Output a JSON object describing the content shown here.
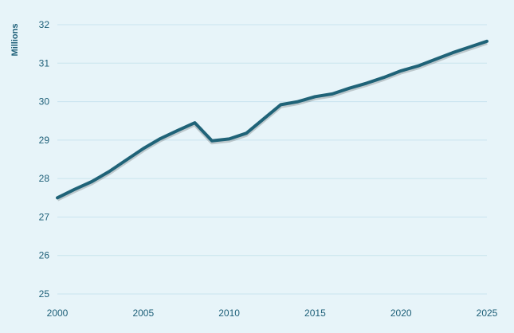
{
  "chart_data": {
    "type": "line",
    "title": "",
    "xlabel": "",
    "ylabel": "Millions",
    "xlim": [
      2000,
      2025
    ],
    "ylim": [
      25,
      32
    ],
    "x_ticks": [
      "2000",
      "2005",
      "2010",
      "2015",
      "2020",
      "2025"
    ],
    "y_ticks": [
      "25",
      "26",
      "27",
      "28",
      "29",
      "30",
      "31",
      "32"
    ],
    "grid": true,
    "legend": "none",
    "x": [
      2000,
      2001,
      2002,
      2003,
      2004,
      2005,
      2006,
      2007,
      2008,
      2009,
      2010,
      2011,
      2012,
      2013,
      2014,
      2015,
      2016,
      2017,
      2018,
      2019,
      2020,
      2021,
      2022,
      2023,
      2024,
      2025
    ],
    "series": [
      {
        "values": [
          27.5,
          27.72,
          27.92,
          28.18,
          28.48,
          28.78,
          29.04,
          29.25,
          29.45,
          28.98,
          29.03,
          29.18,
          29.55,
          29.92,
          30.0,
          30.13,
          30.2,
          30.35,
          30.48,
          30.63,
          30.8,
          30.93,
          31.1,
          31.27,
          31.42,
          31.57
        ],
        "color": "#1f6378"
      }
    ],
    "colors": {
      "line": "#1f6378",
      "background": "#e7f4f9",
      "grid": "#c9e3ee",
      "text": "#1d5f78"
    }
  }
}
